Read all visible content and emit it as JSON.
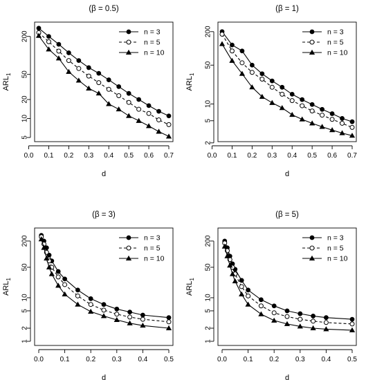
{
  "chart_data": [
    {
      "type": "line",
      "title": "(β = 0.5)",
      "xlabel": "d",
      "ylabel": "ARL",
      "ylabel_sub": "1",
      "yscale": "log",
      "xlim": [
        0.05,
        0.7
      ],
      "ylim": [
        5,
        290
      ],
      "xticks": [
        "0.0",
        "0.1",
        "0.2",
        "0.3",
        "0.4",
        "0.5",
        "0.6",
        "0.7"
      ],
      "yticks": [
        "5",
        "10",
        "20",
        "50",
        "200"
      ],
      "legend_position": "top-right",
      "x": [
        0.05,
        0.1,
        0.15,
        0.2,
        0.25,
        0.3,
        0.35,
        0.4,
        0.45,
        0.5,
        0.55,
        0.6,
        0.65,
        0.7
      ],
      "series": [
        {
          "name": "n = 3",
          "style": "solid",
          "marker": "filled-circle",
          "values": [
            270,
            200,
            150,
            110,
            83,
            64,
            52,
            41,
            32,
            25,
            20,
            16,
            13,
            11
          ]
        },
        {
          "name": "n = 5",
          "style": "dashed",
          "marker": "open-circle",
          "values": [
            230,
            165,
            117,
            83,
            62,
            47,
            37,
            29,
            23,
            18,
            14,
            12,
            9.5,
            8
          ]
        },
        {
          "name": "n = 10",
          "style": "solid",
          "marker": "filled-triangle",
          "values": [
            205,
            125,
            90,
            55,
            40,
            30,
            25,
            17,
            14,
            11,
            9.2,
            7.6,
            6.2,
            5.2
          ]
        }
      ]
    },
    {
      "type": "line",
      "title": "(β = 1)",
      "xlabel": "d",
      "ylabel": "ARL",
      "ylabel_sub": "1",
      "yscale": "log",
      "xlim": [
        0.05,
        0.7
      ],
      "ylim": [
        2.5,
        250
      ],
      "xticks": [
        "0.0",
        "0.1",
        "0.2",
        "0.3",
        "0.4",
        "0.5",
        "0.6",
        "0.7"
      ],
      "yticks": [
        "2",
        "5",
        "10",
        "50",
        "200"
      ],
      "legend_position": "top-right",
      "x": [
        0.05,
        0.1,
        0.15,
        0.2,
        0.25,
        0.3,
        0.35,
        0.4,
        0.45,
        0.5,
        0.55,
        0.6,
        0.65,
        0.7
      ],
      "series": [
        {
          "name": "n = 3",
          "style": "solid",
          "marker": "filled-circle",
          "values": [
            200,
            115,
            90,
            50,
            35,
            26,
            20,
            15,
            12,
            9.8,
            8,
            6.7,
            5.5,
            4.8
          ]
        },
        {
          "name": "n = 5",
          "style": "dashed",
          "marker": "open-circle",
          "values": [
            180,
            90,
            55,
            37,
            28,
            20,
            15,
            11.5,
            9.3,
            7.5,
            6.3,
            5.3,
            4.5,
            3.8
          ]
        },
        {
          "name": "n = 10",
          "style": "solid",
          "marker": "filled-triangle",
          "values": [
            120,
            60,
            35,
            20,
            13.5,
            10.5,
            8.5,
            6.4,
            5.3,
            4.5,
            3.9,
            3.4,
            3,
            2.7
          ]
        }
      ]
    },
    {
      "type": "line",
      "title": "(β = 3)",
      "xlabel": "d",
      "ylabel": "ARL",
      "ylabel_sub": "1",
      "yscale": "log",
      "xlim": [
        0,
        0.5
      ],
      "ylim": [
        1,
        320
      ],
      "xticks": [
        "0.0",
        "0.1",
        "0.2",
        "0.3",
        "0.4",
        "0.5"
      ],
      "yticks": [
        "1",
        "2",
        "5",
        "10",
        "50",
        "200"
      ],
      "legend_position": "top-right",
      "x": [
        0.01,
        0.02,
        0.03,
        0.04,
        0.05,
        0.075,
        0.1,
        0.15,
        0.2,
        0.25,
        0.3,
        0.35,
        0.4,
        0.5
      ],
      "series": [
        {
          "name": "n = 3",
          "style": "solid",
          "marker": "filled-circle",
          "values": [
            270,
            200,
            140,
            95,
            70,
            40,
            27,
            15,
            9.5,
            7,
            5.5,
            4.7,
            4,
            3.5
          ]
        },
        {
          "name": "n = 5",
          "style": "dashed",
          "marker": "open-circle",
          "values": [
            250,
            170,
            110,
            70,
            50,
            30,
            20,
            11,
            7,
            5.2,
            4.2,
            3.6,
            3.2,
            2.8
          ]
        },
        {
          "name": "n = 10",
          "style": "solid",
          "marker": "filled-triangle",
          "values": [
            220,
            140,
            80,
            50,
            35,
            19,
            12,
            7,
            4.8,
            3.8,
            3.1,
            2.6,
            2.3,
            2
          ]
        }
      ]
    },
    {
      "type": "line",
      "title": "(β = 5)",
      "xlabel": "d",
      "ylabel": "ARL",
      "ylabel_sub": "1",
      "yscale": "log",
      "xlim": [
        0,
        0.5
      ],
      "ylim": [
        1,
        320
      ],
      "xticks": [
        "0.0",
        "0.1",
        "0.2",
        "0.3",
        "0.4",
        "0.5"
      ],
      "yticks": [
        "1",
        "2",
        "5",
        "10",
        "50",
        "200"
      ],
      "legend_position": "top-right",
      "x": [
        0.01,
        0.02,
        0.03,
        0.04,
        0.05,
        0.075,
        0.1,
        0.15,
        0.2,
        0.25,
        0.3,
        0.35,
        0.4,
        0.5
      ],
      "series": [
        {
          "name": "n = 3",
          "style": "solid",
          "marker": "filled-circle",
          "values": [
            200,
            140,
            90,
            60,
            45,
            25,
            15,
            9,
            6.5,
            5,
            4.3,
            3.8,
            3.5,
            3.2
          ]
        },
        {
          "name": "n = 5",
          "style": "dashed",
          "marker": "open-circle",
          "values": [
            180,
            120,
            75,
            50,
            35,
            18,
            11,
            6.5,
            4.5,
            3.7,
            3.2,
            2.9,
            2.7,
            2.5
          ]
        },
        {
          "name": "n = 10",
          "style": "solid",
          "marker": "filled-triangle",
          "values": [
            150,
            90,
            55,
            35,
            24,
            12,
            7,
            4.2,
            3,
            2.5,
            2.2,
            2,
            1.9,
            1.8
          ]
        }
      ]
    }
  ]
}
